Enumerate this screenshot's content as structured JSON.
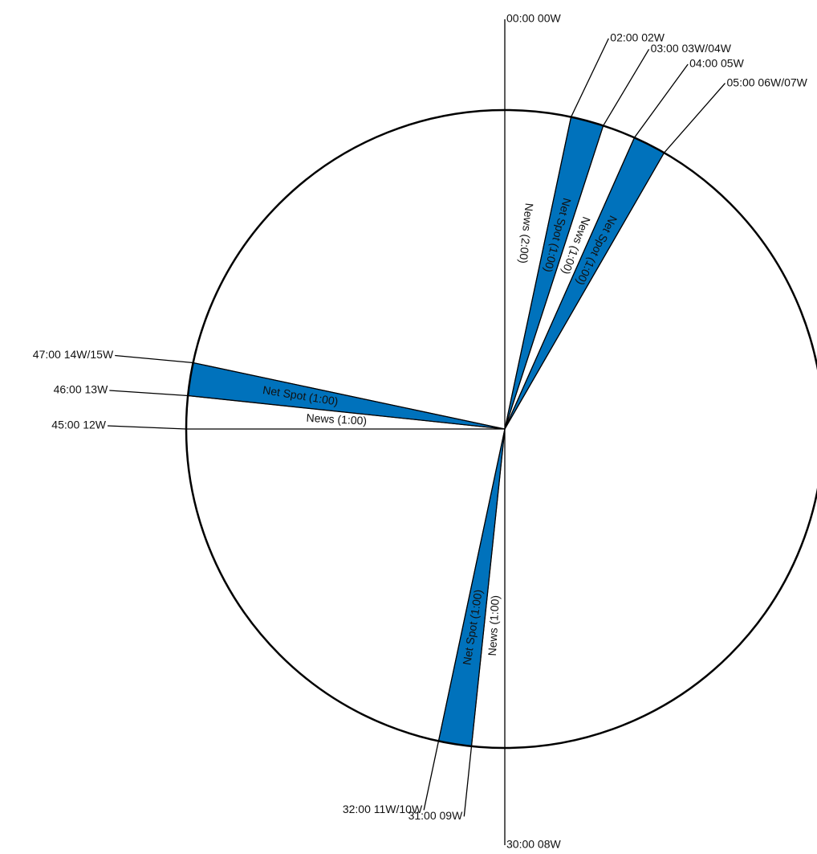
{
  "clock": {
    "period_minutes": 60,
    "colors": {
      "net_spot": "#0072bc",
      "news": "#ffffff",
      "outline": "#000000",
      "text": "#111111"
    },
    "segments": [
      {
        "type": "news",
        "start": 0,
        "end": 2,
        "label": "News (2:00)"
      },
      {
        "type": "net_spot",
        "start": 2,
        "end": 3,
        "label": "Net Spot (1:00)"
      },
      {
        "type": "news",
        "start": 3,
        "end": 4,
        "label": "News (1:00)"
      },
      {
        "type": "net_spot",
        "start": 4,
        "end": 5,
        "label": "Net Spot (1:00)"
      },
      {
        "type": "net_spot",
        "start": 31,
        "end": 32,
        "label": "Net Spot (1:00)"
      },
      {
        "type": "news",
        "start": 30,
        "end": 31,
        "label": "News (1:00)"
      },
      {
        "type": "net_spot",
        "start": 46,
        "end": 47,
        "label": "Net Spot (1:00)"
      },
      {
        "type": "news",
        "start": 45,
        "end": 46,
        "label": "News (1:00)"
      }
    ],
    "markers": [
      {
        "minute": 0,
        "label": "00:00 00W"
      },
      {
        "minute": 2,
        "label": "02:00 02W"
      },
      {
        "minute": 3,
        "label": "03:00 03W/04W"
      },
      {
        "minute": 4,
        "label": "04:00 05W"
      },
      {
        "minute": 5,
        "label": "05:00 06W/07W"
      },
      {
        "minute": 30,
        "label": "30:00 08W"
      },
      {
        "minute": 31,
        "label": "31:00 09W"
      },
      {
        "minute": 32,
        "label": "32:00 11W/10W"
      },
      {
        "minute": 45,
        "label": "45:00 12W"
      },
      {
        "minute": 46,
        "label": "46:00 13W"
      },
      {
        "minute": 47,
        "label": "47:00 14W/15W"
      }
    ]
  }
}
